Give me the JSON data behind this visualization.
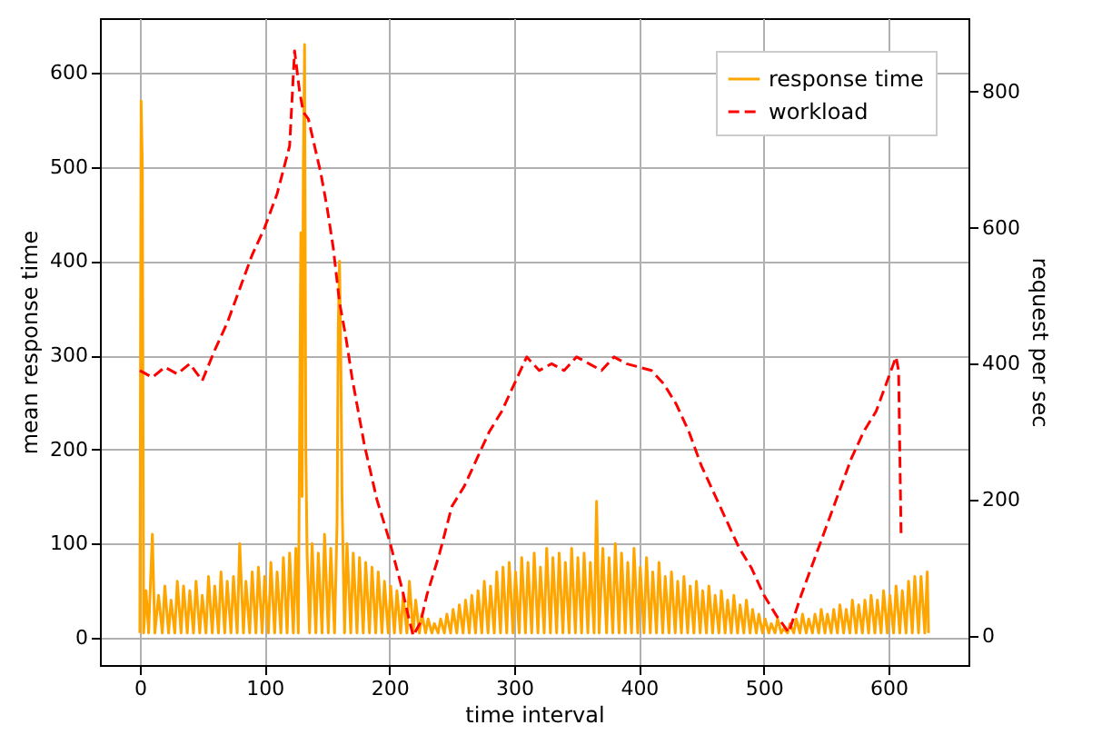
{
  "chart_data": {
    "type": "line",
    "xlabel": "time interval",
    "ylabel": "mean response time",
    "y2label": "request per sec",
    "xlim": [
      -32,
      664
    ],
    "xticks": [
      0,
      100,
      200,
      300,
      400,
      500,
      600
    ],
    "ylim": [
      -29,
      658
    ],
    "yticks": [
      0,
      100,
      200,
      300,
      400,
      500,
      600
    ],
    "y2lim": [
      -43,
      908
    ],
    "y2ticks": [
      0,
      200,
      400,
      600,
      800
    ],
    "grid": true,
    "legend": "top right",
    "series": [
      {
        "name": "response time",
        "color": "#ffa500",
        "line_style": "solid",
        "x": [
          0,
          1,
          2,
          3,
          5,
          7,
          10,
          12,
          15,
          18,
          20,
          23,
          25,
          28,
          30,
          33,
          35,
          38,
          40,
          43,
          45,
          48,
          50,
          53,
          55,
          58,
          60,
          63,
          65,
          68,
          70,
          73,
          75,
          78,
          80,
          83,
          85,
          88,
          90,
          93,
          95,
          98,
          100,
          103,
          105,
          108,
          110,
          113,
          115,
          118,
          120,
          123,
          125,
          127,
          129,
          130,
          131,
          132,
          133,
          134,
          136,
          138,
          141,
          143,
          146,
          148,
          151,
          153,
          156,
          158,
          159,
          160,
          161,
          162,
          164,
          166,
          169,
          171,
          174,
          176,
          179,
          181,
          184,
          186,
          189,
          191,
          194,
          196,
          199,
          201,
          204,
          206,
          209,
          211,
          214,
          216,
          219,
          221,
          224,
          226,
          229,
          231,
          234,
          236,
          239,
          241,
          244,
          246,
          249,
          251,
          254,
          256,
          259,
          261,
          264,
          266,
          269,
          271,
          274,
          276,
          279,
          281,
          284,
          286,
          289,
          291,
          294,
          296,
          299,
          301,
          304,
          306,
          309,
          311,
          314,
          316,
          319,
          321,
          324,
          326,
          329,
          331,
          334,
          336,
          339,
          341,
          344,
          346,
          349,
          351,
          354,
          356,
          359,
          361,
          364,
          366,
          368,
          371,
          374,
          376,
          379,
          381,
          384,
          386,
          389,
          391,
          394,
          396,
          399,
          401,
          404,
          406,
          409,
          411,
          414,
          416,
          419,
          421,
          424,
          426,
          429,
          431,
          434,
          436,
          439,
          441,
          444,
          446,
          449,
          451,
          454,
          456,
          459,
          461,
          464,
          466,
          469,
          471,
          474,
          476,
          479,
          481,
          484,
          486,
          489,
          491,
          494,
          496,
          499,
          501,
          504,
          506,
          509,
          511,
          514,
          516,
          519,
          521,
          524,
          526,
          529,
          531,
          534,
          536,
          539,
          541,
          544,
          546,
          549,
          551,
          554,
          556,
          559,
          561,
          564,
          566,
          569,
          571,
          574,
          576,
          579,
          581,
          584,
          586,
          589,
          591,
          594,
          596,
          599,
          601,
          604,
          606,
          609,
          611,
          614,
          616,
          619,
          621,
          624,
          626,
          629,
          631,
          632
        ],
        "values": [
          5,
          570,
          500,
          5,
          50,
          5,
          110,
          5,
          45,
          5,
          55,
          5,
          40,
          5,
          60,
          5,
          55,
          5,
          50,
          5,
          60,
          5,
          45,
          5,
          65,
          5,
          55,
          5,
          70,
          5,
          60,
          5,
          65,
          5,
          100,
          5,
          60,
          5,
          70,
          5,
          75,
          5,
          65,
          5,
          80,
          5,
          70,
          5,
          85,
          5,
          90,
          5,
          95,
          5,
          430,
          150,
          500,
          630,
          200,
          90,
          5,
          100,
          5,
          90,
          5,
          110,
          5,
          95,
          5,
          120,
          330,
          400,
          300,
          150,
          5,
          100,
          5,
          90,
          5,
          85,
          5,
          80,
          5,
          75,
          5,
          70,
          5,
          60,
          5,
          55,
          5,
          50,
          5,
          45,
          5,
          60,
          5,
          40,
          5,
          25,
          5,
          20,
          5,
          15,
          5,
          20,
          5,
          25,
          5,
          30,
          5,
          35,
          5,
          40,
          5,
          45,
          5,
          50,
          5,
          60,
          5,
          55,
          5,
          70,
          5,
          75,
          5,
          80,
          5,
          70,
          5,
          85,
          5,
          80,
          5,
          90,
          5,
          75,
          5,
          95,
          5,
          85,
          5,
          90,
          5,
          80,
          5,
          95,
          5,
          85,
          5,
          90,
          5,
          80,
          5,
          145,
          5,
          95,
          5,
          85,
          5,
          100,
          5,
          90,
          5,
          80,
          5,
          95,
          5,
          75,
          5,
          85,
          5,
          70,
          5,
          80,
          5,
          65,
          5,
          70,
          5,
          60,
          5,
          65,
          5,
          55,
          5,
          60,
          5,
          50,
          5,
          55,
          5,
          45,
          5,
          50,
          5,
          40,
          5,
          45,
          5,
          35,
          5,
          40,
          5,
          30,
          5,
          25,
          5,
          20,
          5,
          15,
          5,
          20,
          5,
          10,
          5,
          15,
          5,
          20,
          5,
          25,
          5,
          20,
          5,
          25,
          5,
          30,
          5,
          25,
          5,
          30,
          5,
          35,
          5,
          30,
          5,
          40,
          5,
          35,
          5,
          40,
          5,
          45,
          5,
          40,
          5,
          50,
          5,
          45,
          5,
          55,
          5,
          50,
          5,
          60,
          5,
          65,
          5,
          65,
          5,
          70,
          5
        ]
      },
      {
        "name": "workload",
        "color": "#ff0000",
        "line_style": "dashed",
        "axis": "y2",
        "x": [
          0,
          10,
          20,
          30,
          40,
          50,
          60,
          70,
          80,
          90,
          100,
          110,
          120,
          124,
          128,
          131,
          135,
          140,
          145,
          150,
          155,
          160,
          165,
          170,
          180,
          190,
          200,
          210,
          215,
          219,
          225,
          230,
          240,
          250,
          260,
          270,
          280,
          290,
          300,
          310,
          320,
          330,
          340,
          350,
          360,
          370,
          380,
          390,
          400,
          410,
          420,
          430,
          440,
          450,
          460,
          470,
          480,
          490,
          500,
          510,
          520,
          530,
          540,
          550,
          560,
          570,
          580,
          590,
          600,
          606,
          608,
          610
        ],
        "values": [
          390,
          380,
          395,
          385,
          400,
          375,
          420,
          460,
          510,
          560,
          600,
          650,
          720,
          860,
          800,
          770,
          760,
          720,
          680,
          630,
          570,
          490,
          440,
          380,
          280,
          200,
          140,
          70,
          30,
          0,
          20,
          60,
          120,
          190,
          220,
          260,
          300,
          330,
          370,
          410,
          390,
          400,
          390,
          410,
          400,
          390,
          410,
          400,
          395,
          390,
          370,
          340,
          300,
          250,
          210,
          170,
          130,
          100,
          60,
          30,
          5,
          60,
          110,
          160,
          210,
          260,
          300,
          330,
          380,
          410,
          390,
          150
        ]
      }
    ]
  }
}
